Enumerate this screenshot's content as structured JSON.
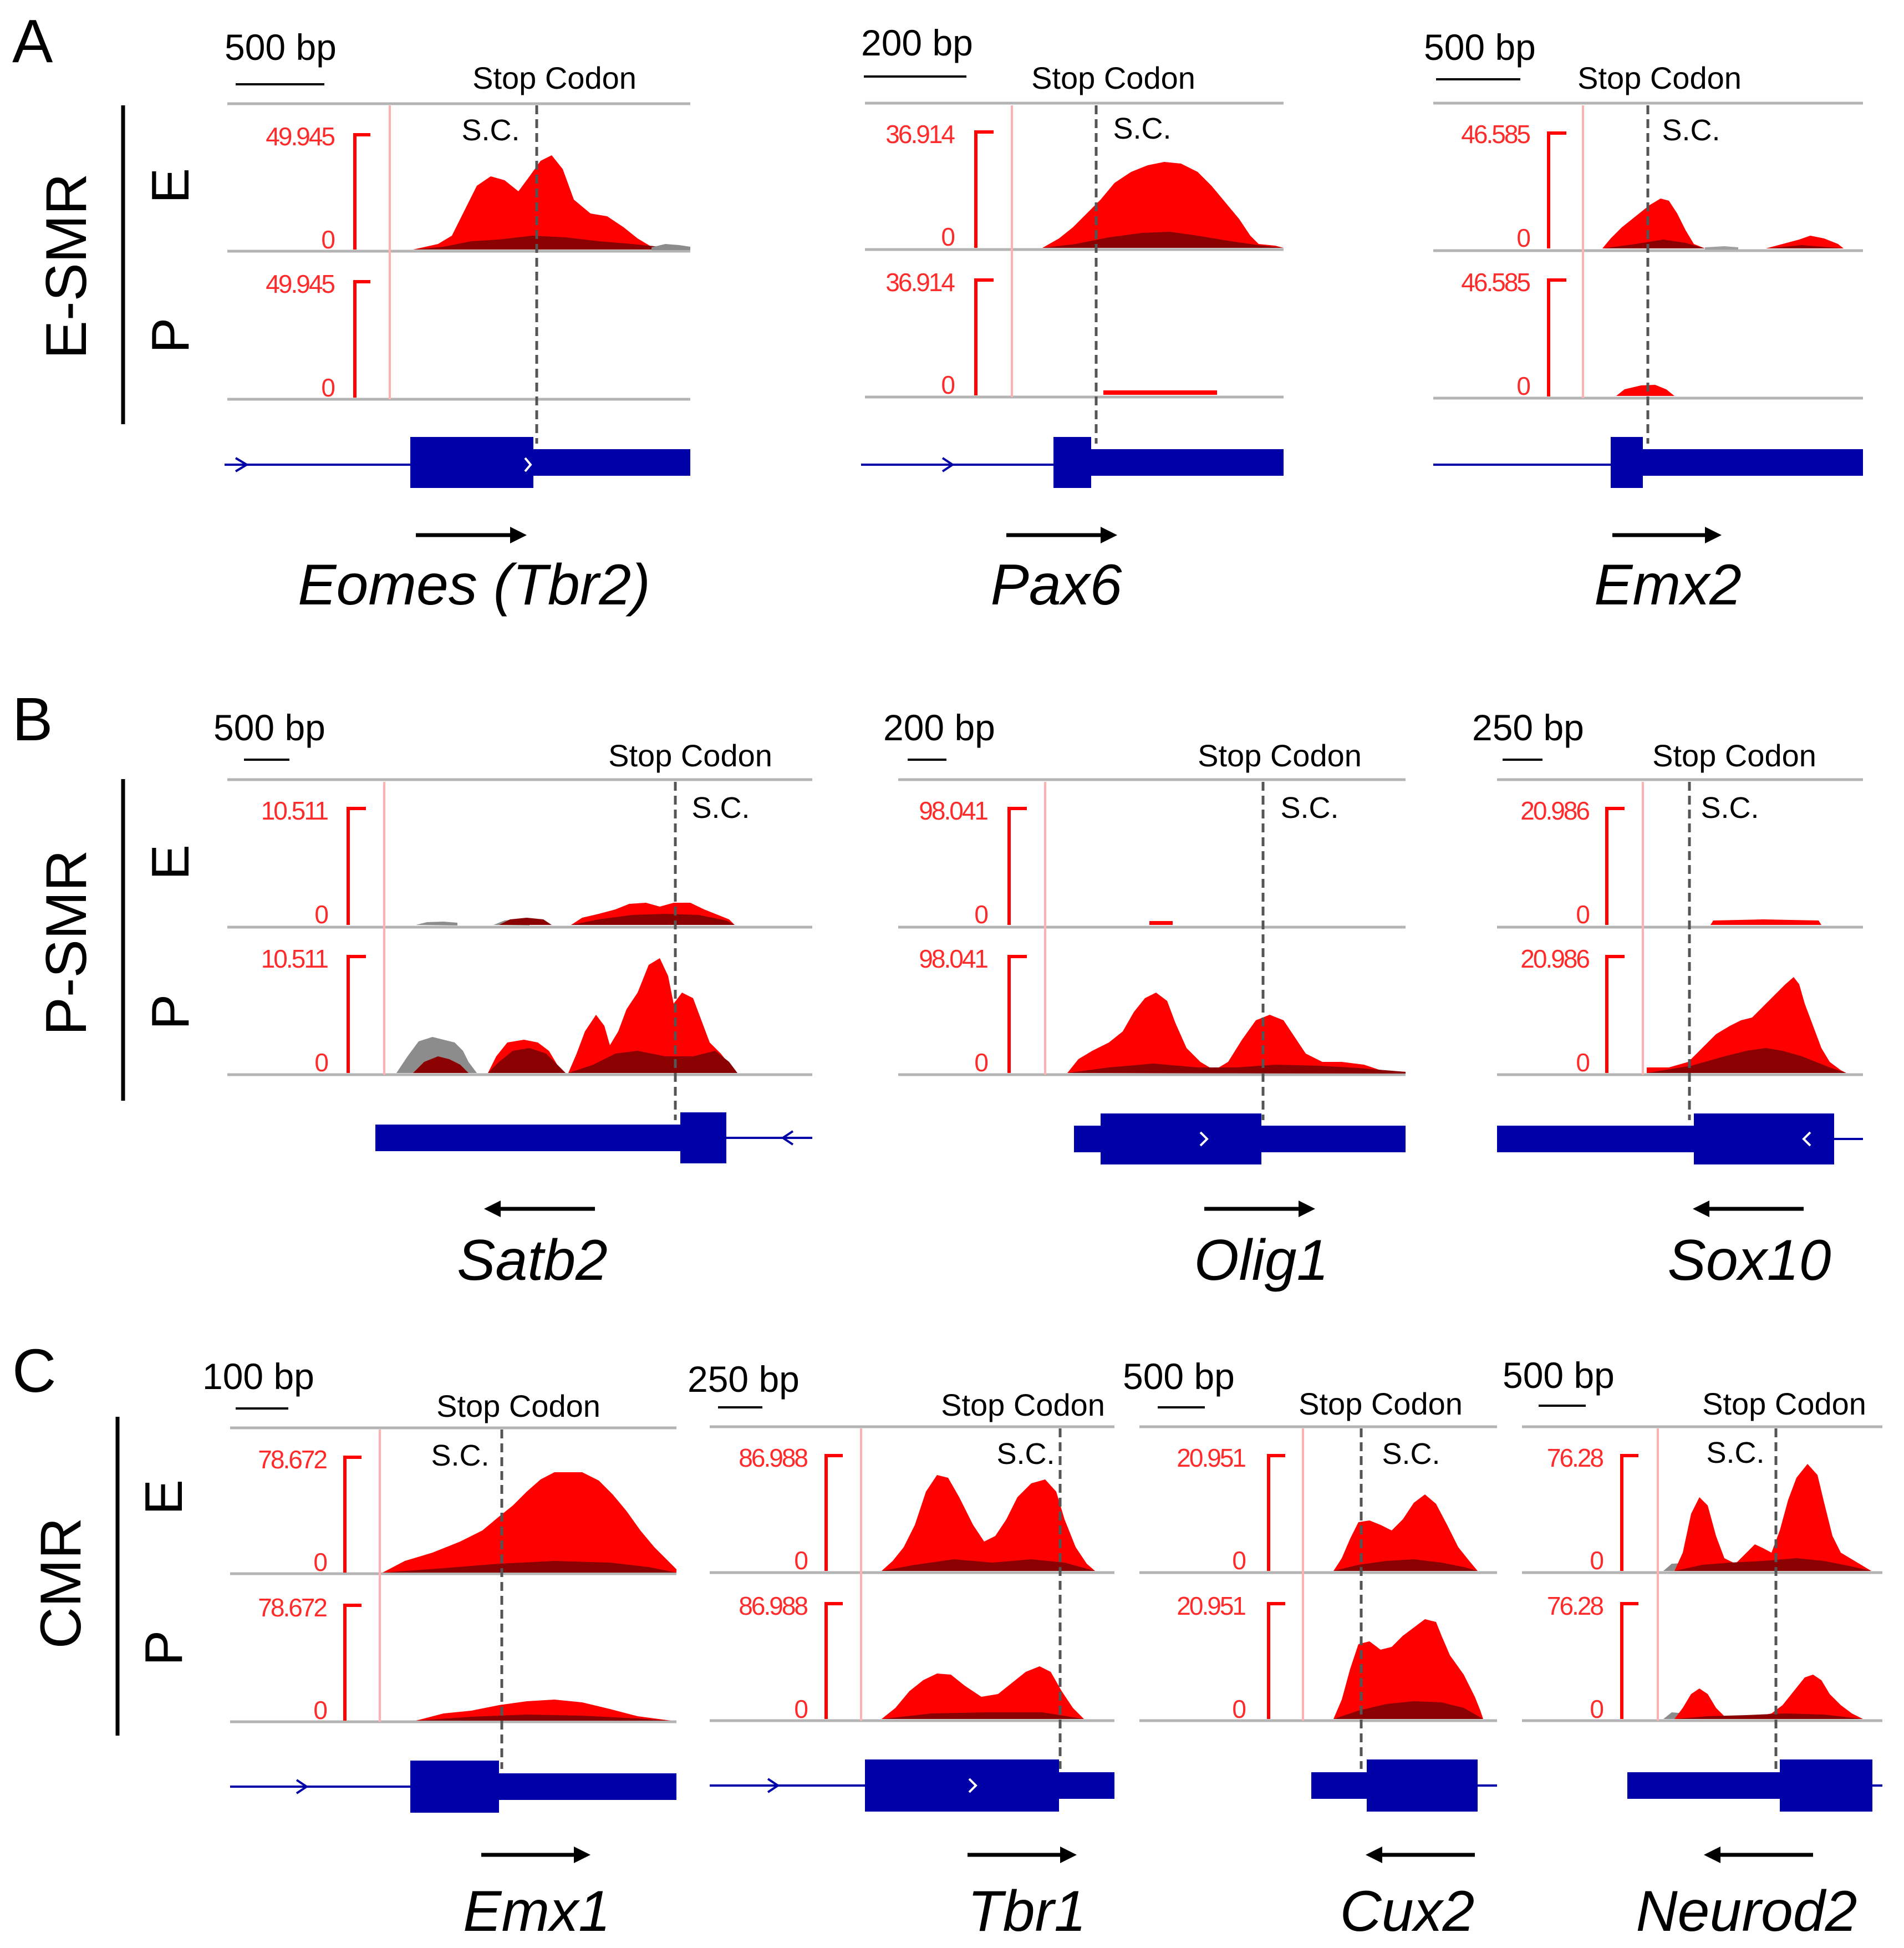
{
  "colors": {
    "signal": "#ff0000",
    "signal_overlap": "#8b0000",
    "signal_gray": "#8c8c8c",
    "axis": "#ff0000",
    "gene_model": "#0000a8",
    "separator": "#b4b4b4",
    "stop_line": "#555555",
    "text": "#000000"
  },
  "icons": {
    "scale_bar": "scale-bar-icon",
    "direction_arrow": "direction-arrow-icon",
    "strand_chevron": "strand-chevron-icon"
  },
  "panels": [
    {
      "letter": "A",
      "group_label": "E-SMR",
      "tracks": [
        {
          "label": "E"
        },
        {
          "label": "P"
        }
      ],
      "genes": [
        {
          "name": "Eomes (Tbr2)",
          "scale": "500 bp",
          "stop_label": "Stop Codon",
          "sc_label": "S.C.",
          "ymax_E": "49.945",
          "ymin_E": "0",
          "ymax_P": "49.945",
          "ymin_P": "0",
          "direction": "right"
        },
        {
          "name": "Pax6",
          "scale": "200 bp",
          "stop_label": "Stop Codon",
          "sc_label": "S.C.",
          "ymax_E": "36.914",
          "ymin_E": "0",
          "ymax_P": "36.914",
          "ymin_P": "0",
          "direction": "right"
        },
        {
          "name": "Emx2",
          "scale": "500 bp",
          "stop_label": "Stop Codon",
          "sc_label": "S.C.",
          "ymax_E": "46.585",
          "ymin_E": "0",
          "ymax_P": "46.585",
          "ymin_P": "0",
          "direction": "right"
        }
      ]
    },
    {
      "letter": "B",
      "group_label": "P-SMR",
      "tracks": [
        {
          "label": "E"
        },
        {
          "label": "P"
        }
      ],
      "genes": [
        {
          "name": "Satb2",
          "scale": "500 bp",
          "stop_label": "Stop Codon",
          "sc_label": "S.C.",
          "ymax_E": "10.511",
          "ymin_E": "0",
          "ymax_P": "10.511",
          "ymin_P": "0",
          "direction": "left"
        },
        {
          "name": "Olig1",
          "scale": "200 bp",
          "stop_label": "Stop Codon",
          "sc_label": "S.C.",
          "ymax_E": "98.041",
          "ymin_E": "0",
          "ymax_P": "98.041",
          "ymin_P": "0",
          "direction": "right"
        },
        {
          "name": "Sox10",
          "scale": "250 bp",
          "stop_label": "Stop Codon",
          "sc_label": "S.C.",
          "ymax_E": "20.986",
          "ymin_E": "0",
          "ymax_P": "20.986",
          "ymin_P": "0",
          "direction": "left"
        }
      ]
    },
    {
      "letter": "C",
      "group_label": "CMR",
      "tracks": [
        {
          "label": "E"
        },
        {
          "label": "P"
        }
      ],
      "genes": [
        {
          "name": "Emx1",
          "scale": "100 bp",
          "stop_label": "Stop Codon",
          "sc_label": "S.C.",
          "ymax_E": "78.672",
          "ymin_E": "0",
          "ymax_P": "78.672",
          "ymin_P": "0",
          "direction": "right"
        },
        {
          "name": "Tbr1",
          "scale": "250 bp",
          "stop_label": "Stop Codon",
          "sc_label": "S.C.",
          "ymax_E": "86.988",
          "ymin_E": "0",
          "ymax_P": "86.988",
          "ymin_P": "0",
          "direction": "right"
        },
        {
          "name": "Cux2",
          "scale": "500 bp",
          "stop_label": "Stop Codon",
          "sc_label": "S.C.",
          "ymax_E": "20.951",
          "ymin_E": "0",
          "ymax_P": "20.951",
          "ymin_P": "0",
          "direction": "left"
        },
        {
          "name": "Neurod2",
          "scale": "500 bp",
          "stop_label": "Stop Codon",
          "sc_label": "S.C.",
          "ymax_E": "76.28",
          "ymin_E": "0",
          "ymax_P": "76.28",
          "ymin_P": "0",
          "direction": "left"
        }
      ]
    }
  ]
}
